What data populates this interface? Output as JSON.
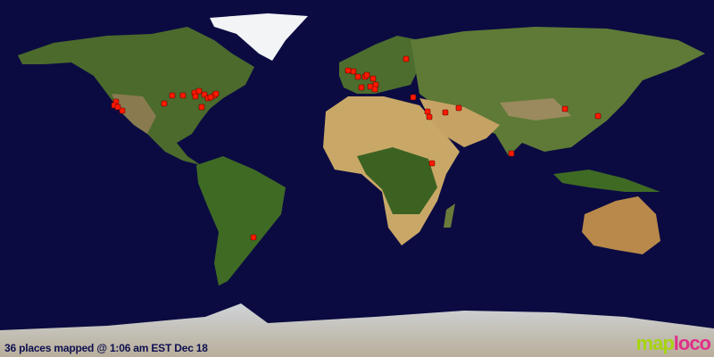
{
  "status_text": "36 places mapped @ 1:06 am EST Dec 18",
  "logo": {
    "part1": "map",
    "part2": "loco"
  },
  "colors": {
    "ocean": "#0b0b42",
    "marker": "#ff1a00",
    "logo_green": "#a6d40e",
    "logo_pink": "#e0308a"
  },
  "places_count": 36
}
